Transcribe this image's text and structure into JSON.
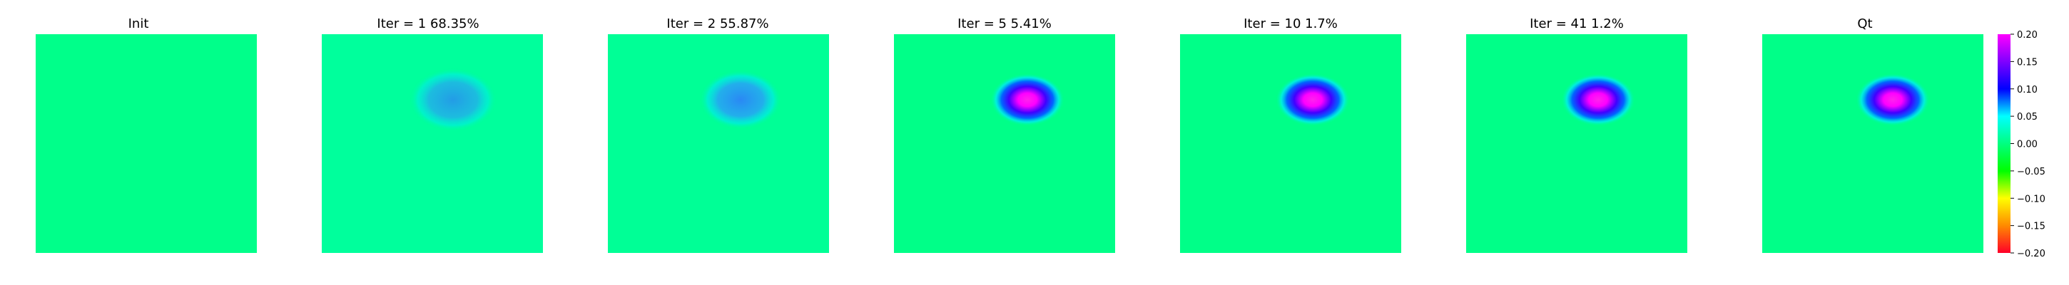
{
  "panels": [
    {
      "title": "Init",
      "blob_amplitude": 0.0
    },
    {
      "title": "Iter = 1    68.35%",
      "blob_amplitude": 0.06
    },
    {
      "title": "Iter = 2    55.87%",
      "blob_amplitude": 0.07
    },
    {
      "title": "Iter = 5    5.41%",
      "blob_amplitude": 0.19
    },
    {
      "title": "Iter = 10    1.7%",
      "blob_amplitude": 0.2
    },
    {
      "title": "Iter = 41    1.2%",
      "blob_amplitude": 0.2
    },
    {
      "title": "Qt",
      "blob_amplitude": 0.2
    }
  ],
  "chart_data": {
    "type": "heatmap",
    "panel_titles": [
      "Init",
      "Iter = 1    68.35%",
      "Iter = 2    55.87%",
      "Iter = 5    5.41%",
      "Iter = 10    1.7%",
      "Iter = 41    1.2%",
      "Qt"
    ],
    "colorbar": {
      "range": [
        -0.2,
        0.2
      ],
      "ticks": [
        "0.20",
        "0.15",
        "0.10",
        "0.05",
        "0.00",
        "−0.05",
        "−0.10",
        "−0.15",
        "−0.20"
      ],
      "colormap": "gist_rainbow"
    },
    "blob_center": [
      0.6,
      0.3
    ],
    "background_value": 0.01
  },
  "colors": {
    "background": "#00ff8a",
    "colormap_stops": [
      "#ff0029",
      "#ff8a00",
      "#ffff00",
      "#00ff00",
      "#00ff80",
      "#00ffff",
      "#0000ff",
      "#8000ff",
      "#ff00ff"
    ]
  }
}
